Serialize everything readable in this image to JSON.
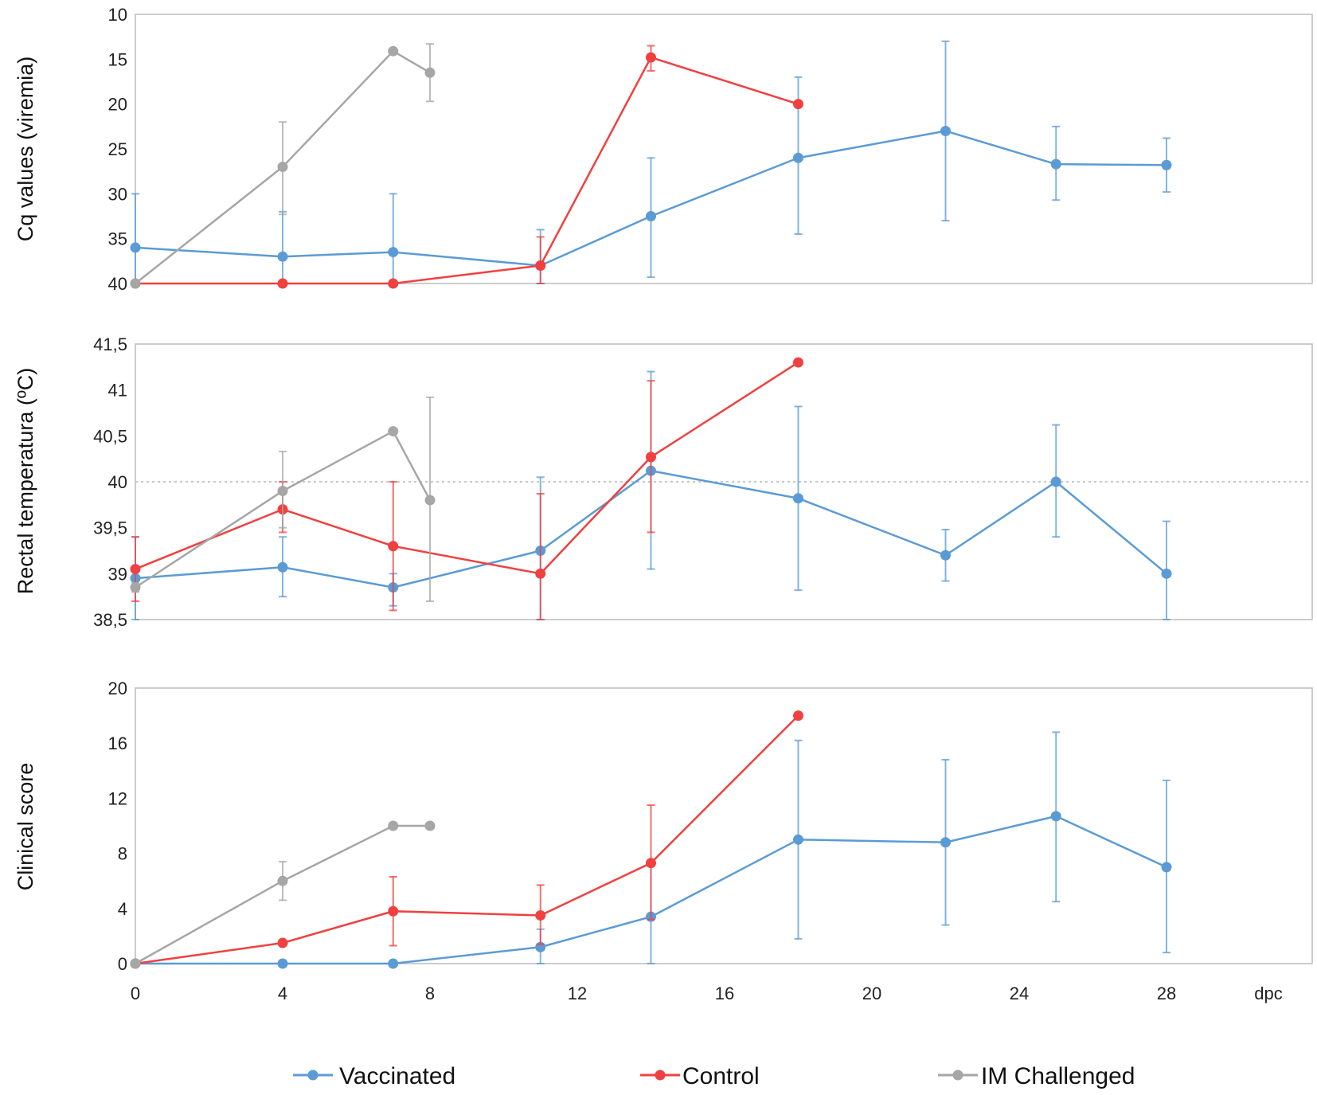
{
  "chart_data": [
    {
      "type": "line",
      "id": "viremia",
      "ylabel": "Cq values (viremia)",
      "ylim": [
        10,
        40
      ],
      "y_inverted": true,
      "yticks": [
        10,
        15,
        20,
        25,
        30,
        35,
        40
      ],
      "ytick_labels": [
        "10",
        "15",
        "20",
        "25",
        "30",
        "35",
        "40"
      ],
      "xlim": [
        0,
        32
      ],
      "series": [
        {
          "name": "Vaccinated",
          "color": "#5b9bd5",
          "x": [
            0,
            4,
            7,
            11,
            14,
            18,
            22,
            25,
            28
          ],
          "y": [
            36,
            37,
            36.5,
            38,
            32.5,
            26,
            23,
            26.7,
            26.8
          ],
          "err_low": [
            30,
            32,
            30,
            34,
            26,
            17,
            13,
            22.5,
            23.8
          ],
          "err_high": [
            40,
            40,
            40,
            40,
            39.3,
            34.5,
            33,
            30.7,
            29.8
          ]
        },
        {
          "name": "Control",
          "color": "#f04040",
          "x": [
            0,
            4,
            7,
            11,
            14,
            18
          ],
          "y": [
            40,
            40,
            40,
            38,
            14.8,
            20
          ],
          "err_low": [
            null,
            null,
            null,
            34.8,
            13.5,
            null
          ],
          "err_high": [
            null,
            null,
            null,
            40,
            16.3,
            null
          ]
        },
        {
          "name": "IM Challenged",
          "color": "#a6a6a6",
          "x": [
            0,
            4,
            7,
            8
          ],
          "y": [
            40,
            27,
            14.1,
            16.5
          ],
          "err_low": [
            null,
            22,
            null,
            13.3
          ],
          "err_high": [
            null,
            32.3,
            null,
            19.7
          ]
        }
      ]
    },
    {
      "type": "line",
      "id": "temperature",
      "ylabel": "Rectal temperatura (ºC)",
      "ylim": [
        38.5,
        41.5
      ],
      "y_inverted": false,
      "yticks": [
        38.5,
        39,
        39.5,
        40,
        40.5,
        41,
        41.5
      ],
      "ytick_labels": [
        "38,5",
        "39",
        "39,5",
        "40",
        "40,5",
        "41",
        "41,5"
      ],
      "reference_line": 40,
      "xlim": [
        0,
        32
      ],
      "series": [
        {
          "name": "Vaccinated",
          "color": "#5b9bd5",
          "x": [
            0,
            4,
            7,
            11,
            14,
            18,
            22,
            25,
            28
          ],
          "y": [
            38.95,
            39.07,
            38.85,
            39.25,
            40.12,
            39.82,
            39.2,
            40.0,
            39.0
          ],
          "err_low": [
            38.5,
            38.75,
            38.65,
            38.5,
            39.05,
            38.82,
            38.92,
            39.4,
            38.5
          ],
          "err_high": [
            39.4,
            39.4,
            39.0,
            40.05,
            41.2,
            40.82,
            39.48,
            40.62,
            39.57
          ]
        },
        {
          "name": "Control",
          "color": "#f04040",
          "x": [
            0,
            4,
            7,
            11,
            14,
            18
          ],
          "y": [
            39.05,
            39.7,
            39.3,
            39.0,
            40.27,
            41.3
          ],
          "err_low": [
            38.7,
            39.45,
            38.6,
            38.5,
            39.45,
            null
          ],
          "err_high": [
            39.4,
            40.0,
            40.0,
            39.87,
            41.1,
            null
          ]
        },
        {
          "name": "IM Challenged",
          "color": "#a6a6a6",
          "x": [
            0,
            4,
            7,
            8
          ],
          "y": [
            38.85,
            39.9,
            40.55,
            39.8
          ],
          "err_low": [
            38.8,
            39.5,
            null,
            38.7
          ],
          "err_high": [
            38.9,
            40.33,
            null,
            40.92
          ]
        }
      ]
    },
    {
      "type": "line",
      "id": "clinical",
      "ylabel": "Clinical score",
      "ylim": [
        0,
        20
      ],
      "y_inverted": false,
      "yticks": [
        0,
        4,
        8,
        12,
        16,
        20
      ],
      "ytick_labels": [
        "0",
        "4",
        "8",
        "12",
        "16",
        "20"
      ],
      "xlim": [
        0,
        32
      ],
      "xticks": [
        0,
        4,
        8,
        12,
        16,
        20,
        24,
        28
      ],
      "xtick_labels": [
        "0",
        "4",
        "8",
        "12",
        "16",
        "20",
        "24",
        "28"
      ],
      "xlabel": "dpc",
      "series": [
        {
          "name": "Vaccinated",
          "color": "#5b9bd5",
          "x": [
            0,
            4,
            7,
            11,
            14,
            18,
            22,
            25,
            28
          ],
          "y": [
            0,
            0,
            0,
            1.2,
            3.4,
            9.0,
            8.8,
            10.7,
            7.0
          ],
          "err_low": [
            null,
            null,
            null,
            0,
            0,
            1.8,
            2.8,
            4.5,
            0.8
          ],
          "err_high": [
            null,
            null,
            null,
            2.5,
            7.2,
            16.2,
            14.8,
            16.8,
            13.3
          ]
        },
        {
          "name": "Control",
          "color": "#f04040",
          "x": [
            0,
            4,
            7,
            11,
            14,
            18
          ],
          "y": [
            0,
            1.5,
            3.8,
            3.5,
            7.3,
            18.0
          ],
          "err_low": [
            null,
            null,
            1.3,
            1.4,
            3.2,
            null
          ],
          "err_high": [
            null,
            null,
            6.3,
            5.7,
            11.5,
            null
          ]
        },
        {
          "name": "IM Challenged",
          "color": "#a6a6a6",
          "x": [
            0,
            4,
            7,
            8
          ],
          "y": [
            0,
            6.0,
            10.0,
            10.0
          ],
          "err_low": [
            null,
            4.6,
            null,
            null
          ],
          "err_high": [
            null,
            7.4,
            null,
            null
          ]
        }
      ]
    }
  ],
  "legend": [
    {
      "label": "Vaccinated",
      "color": "#5b9bd5"
    },
    {
      "label": "Control",
      "color": "#f04040"
    },
    {
      "label": "IM Challenged",
      "color": "#a6a6a6"
    }
  ],
  "colors": {
    "frame": "#bfbfbf",
    "reference": "#c8c8c8"
  }
}
